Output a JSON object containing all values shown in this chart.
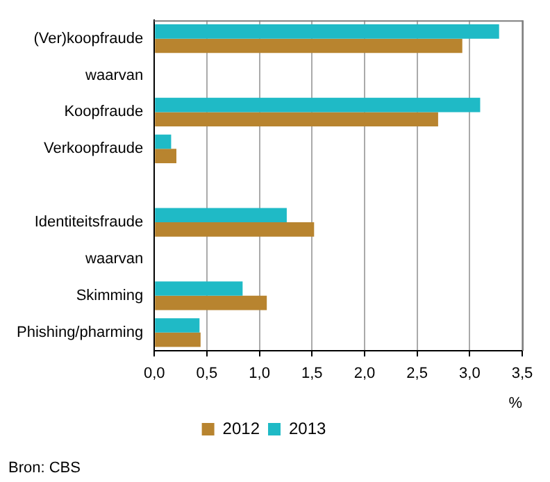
{
  "chart_data": {
    "type": "bar",
    "orientation": "horizontal",
    "categories": [
      "(Ver)koopfraude",
      "waarvan",
      "Koopfraude",
      "Verkoopfraude",
      null,
      "Identiteitsfraude",
      "waarvan",
      "Skimming",
      "Phishing/pharming"
    ],
    "series": [
      {
        "name": "2012",
        "color": "#b8842f",
        "values": [
          2.93,
          null,
          2.7,
          0.21,
          null,
          1.52,
          null,
          1.07,
          0.44
        ]
      },
      {
        "name": "2013",
        "color": "#1fbac6",
        "values": [
          3.28,
          null,
          3.1,
          0.16,
          null,
          1.26,
          null,
          0.84,
          0.43
        ]
      }
    ],
    "xlabel": "%",
    "xlim": [
      0,
      3.5
    ],
    "xticks": [
      {
        "value": 0,
        "label": "0,0"
      },
      {
        "value": 0.5,
        "label": "0,5"
      },
      {
        "value": 1,
        "label": "1,0"
      },
      {
        "value": 1.5,
        "label": "1,5"
      },
      {
        "value": 2,
        "label": "2,0"
      },
      {
        "value": 2.5,
        "label": "2,5"
      },
      {
        "value": 3,
        "label": "3,0"
      },
      {
        "value": 3.5,
        "label": "3,5"
      }
    ],
    "grid": "x",
    "legend": "bottom",
    "annotations": [
      "Bron: CBS"
    ]
  }
}
